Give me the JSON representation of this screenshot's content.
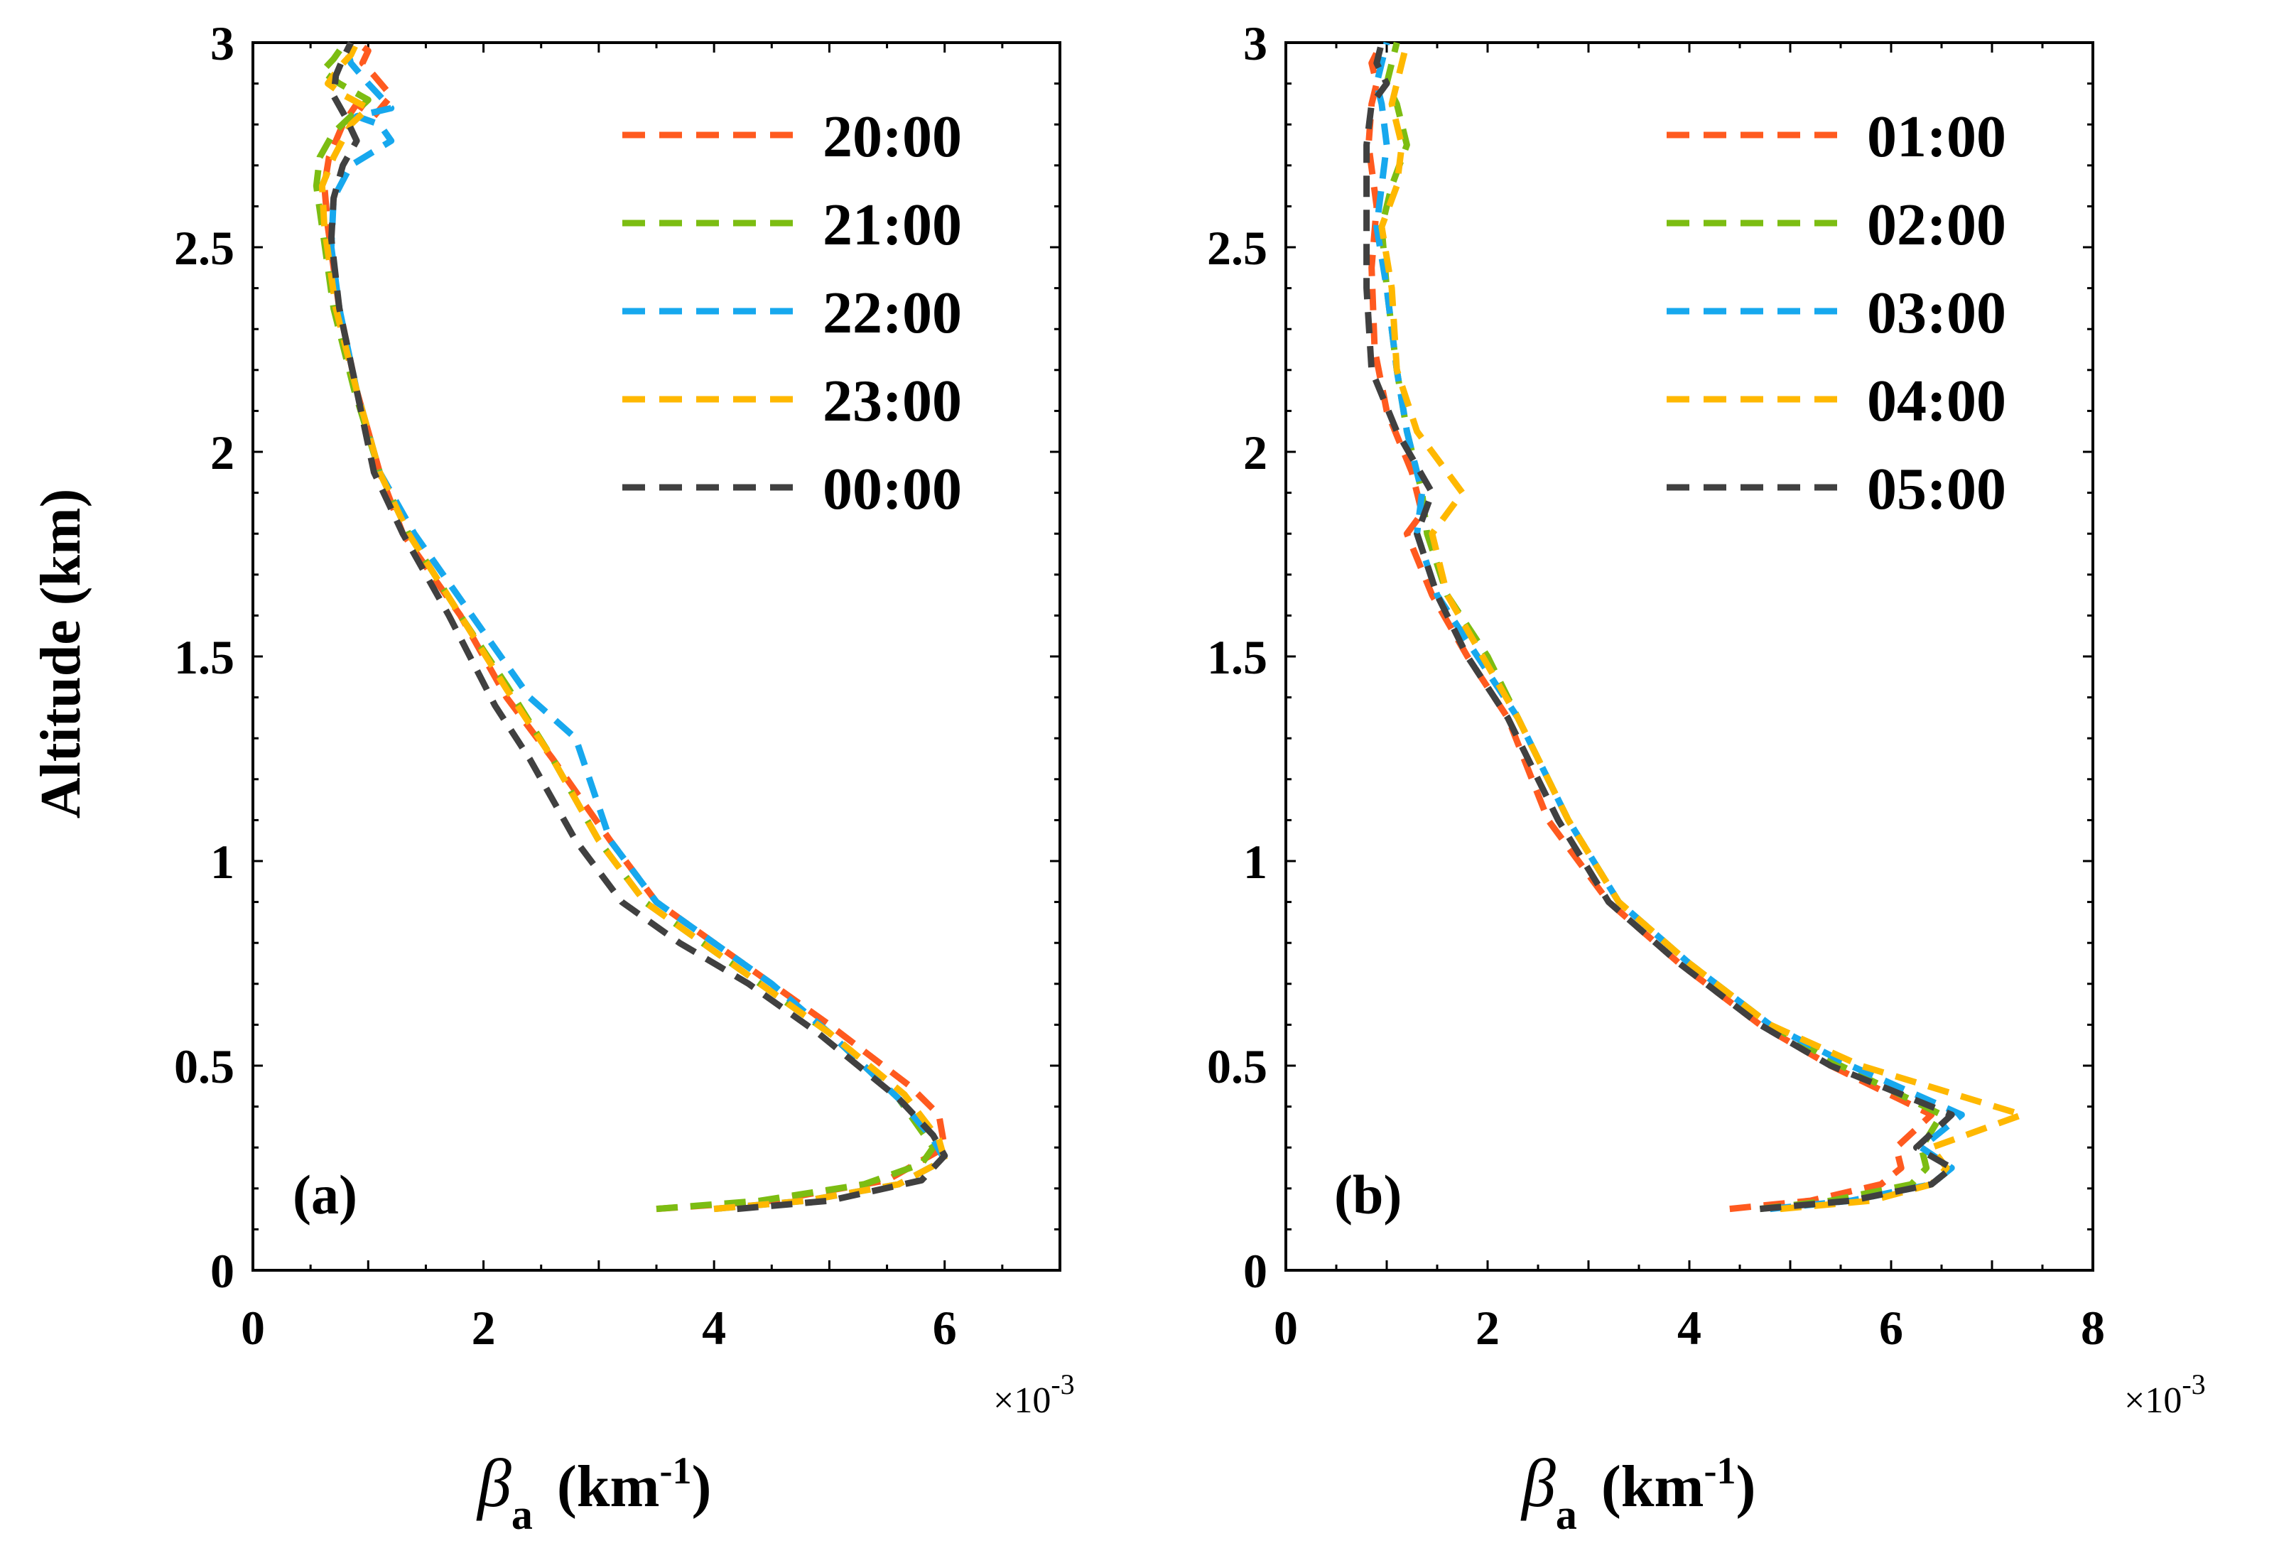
{
  "chart_data": [
    {
      "type": "line",
      "panel_label": "(a)",
      "ylabel": "Altitude  (km)",
      "xlabel_symbol": "β",
      "xlabel_sub": "a",
      "xlabel_unit": "(km",
      "xlabel_sup": "-1",
      "xlabel_close": ")",
      "x_multiplier": "×10",
      "x_multiplier_exp": "-3",
      "xlim": [
        0,
        7
      ],
      "ylim": [
        0,
        3
      ],
      "xticks": [
        "0",
        "2",
        "4",
        "6"
      ],
      "xtick_values": [
        0,
        2,
        4,
        6
      ],
      "yticks": [
        "0",
        "0.5",
        "1",
        "1.5",
        "2",
        "2.5",
        "3"
      ],
      "ytick_values": [
        0,
        0.5,
        1,
        1.5,
        2,
        2.5,
        3
      ],
      "legend_position": "top-right",
      "line_style": "dashed",
      "series": [
        {
          "name": "20:00",
          "color": "#FF5A1F",
          "x": [
            3.5,
            4.5,
            5.5,
            6.0,
            5.95,
            5.7,
            5.0,
            4.5,
            4.0,
            3.5,
            3.1,
            2.6,
            2.2,
            1.8,
            1.3,
            1.1,
            0.9,
            0.75,
            0.65,
            0.62,
            0.66,
            0.78,
            0.9,
            1.05,
            1.2,
            1.05,
            0.95,
            1.0,
            0.9
          ],
          "y": [
            0.15,
            0.17,
            0.22,
            0.3,
            0.38,
            0.45,
            0.6,
            0.7,
            0.8,
            0.9,
            1.05,
            1.25,
            1.4,
            1.6,
            1.8,
            1.95,
            2.15,
            2.35,
            2.55,
            2.65,
            2.72,
            2.8,
            2.85,
            2.82,
            2.87,
            2.92,
            2.95,
            2.98,
            3.0
          ]
        },
        {
          "name": "21:00",
          "color": "#7CBD12",
          "x": [
            3.5,
            4.4,
            5.3,
            5.8,
            5.9,
            5.6,
            5.0,
            4.4,
            3.9,
            3.4,
            3.0,
            2.6,
            2.2,
            1.8,
            1.35,
            1.1,
            0.88,
            0.7,
            0.6,
            0.55,
            0.58,
            0.7,
            0.85,
            1.0,
            0.75,
            0.6,
            0.7,
            0.8
          ],
          "y": [
            0.15,
            0.17,
            0.21,
            0.26,
            0.3,
            0.42,
            0.58,
            0.7,
            0.8,
            0.9,
            1.05,
            1.25,
            1.43,
            1.6,
            1.8,
            1.95,
            2.15,
            2.35,
            2.55,
            2.65,
            2.72,
            2.78,
            2.82,
            2.86,
            2.9,
            2.93,
            2.96,
            3.0
          ]
        },
        {
          "name": "22:00",
          "color": "#17A8EE",
          "x": [
            4.0,
            4.8,
            5.6,
            6.0,
            5.9,
            5.6,
            5.0,
            4.5,
            4.0,
            3.5,
            3.1,
            2.8,
            2.4,
            1.9,
            1.4,
            1.1,
            0.9,
            0.75,
            0.68,
            0.7,
            0.85,
            1.2,
            1.1,
            0.9,
            1.2,
            1.0,
            0.85,
            0.8
          ],
          "y": [
            0.15,
            0.17,
            0.21,
            0.27,
            0.32,
            0.42,
            0.58,
            0.7,
            0.8,
            0.9,
            1.05,
            1.3,
            1.4,
            1.6,
            1.8,
            1.95,
            2.15,
            2.35,
            2.5,
            2.62,
            2.7,
            2.76,
            2.8,
            2.82,
            2.84,
            2.9,
            2.95,
            3.0
          ]
        },
        {
          "name": "23:00",
          "color": "#FFB800",
          "x": [
            4.0,
            4.8,
            5.6,
            6.0,
            5.95,
            5.65,
            5.0,
            4.4,
            3.9,
            3.4,
            3.0,
            2.6,
            2.2,
            1.8,
            1.35,
            1.1,
            0.9,
            0.72,
            0.62,
            0.6,
            0.7,
            0.85,
            1.0,
            0.8,
            0.65,
            0.75,
            0.85,
            0.9
          ],
          "y": [
            0.15,
            0.17,
            0.21,
            0.27,
            0.32,
            0.43,
            0.58,
            0.7,
            0.8,
            0.9,
            1.05,
            1.25,
            1.42,
            1.6,
            1.8,
            1.95,
            2.15,
            2.35,
            2.55,
            2.65,
            2.72,
            2.8,
            2.84,
            2.87,
            2.9,
            2.94,
            2.97,
            3.0
          ]
        },
        {
          "name": "00:00",
          "color": "#404040",
          "x": [
            4.2,
            5.0,
            5.8,
            6.0,
            5.9,
            5.6,
            4.9,
            4.3,
            3.7,
            3.2,
            2.8,
            2.4,
            2.1,
            1.7,
            1.3,
            1.05,
            0.9,
            0.75,
            0.68,
            0.7,
            0.78,
            0.9,
            0.8,
            0.7,
            0.72,
            0.78,
            0.85
          ],
          "y": [
            0.15,
            0.17,
            0.22,
            0.28,
            0.33,
            0.42,
            0.58,
            0.7,
            0.8,
            0.9,
            1.05,
            1.25,
            1.38,
            1.6,
            1.8,
            1.95,
            2.15,
            2.35,
            2.52,
            2.62,
            2.7,
            2.76,
            2.82,
            2.87,
            2.92,
            2.96,
            3.0
          ]
        }
      ]
    },
    {
      "type": "line",
      "panel_label": "(b)",
      "xlabel_symbol": "β",
      "xlabel_sub": "a",
      "xlabel_unit": "(km",
      "xlabel_sup": "-1",
      "xlabel_close": ")",
      "x_multiplier": "×10",
      "x_multiplier_exp": "-3",
      "xlim": [
        0,
        8
      ],
      "ylim": [
        0,
        3
      ],
      "xticks": [
        "0",
        "2",
        "4",
        "6",
        "8"
      ],
      "xtick_values": [
        0,
        2,
        4,
        6,
        8
      ],
      "yticks": [
        "0",
        "0.5",
        "1",
        "1.5",
        "2",
        "2.5",
        "3"
      ],
      "ytick_values": [
        0,
        0.5,
        1,
        1.5,
        2,
        2.5,
        3
      ],
      "legend_position": "top-right",
      "line_style": "dashed",
      "series": [
        {
          "name": "01:00",
          "color": "#FF5A1F",
          "x": [
            4.4,
            5.2,
            5.9,
            6.1,
            6.05,
            6.4,
            5.4,
            4.7,
            3.9,
            3.2,
            2.6,
            2.2,
            1.8,
            1.45,
            1.2,
            1.35,
            1.25,
            1.0,
            0.88,
            0.85,
            0.9,
            0.82,
            0.85,
            0.9,
            0.85,
            0.95
          ],
          "y": [
            0.15,
            0.17,
            0.21,
            0.25,
            0.3,
            0.38,
            0.5,
            0.6,
            0.75,
            0.9,
            1.1,
            1.35,
            1.5,
            1.65,
            1.8,
            1.85,
            1.95,
            2.1,
            2.25,
            2.45,
            2.6,
            2.75,
            2.85,
            2.9,
            2.95,
            3.0
          ]
        },
        {
          "name": "02:00",
          "color": "#7CBD12",
          "x": [
            4.7,
            5.4,
            6.2,
            6.35,
            6.3,
            6.5,
            5.5,
            4.8,
            4.0,
            3.3,
            2.8,
            2.3,
            2.0,
            1.6,
            1.4,
            1.35,
            1.2,
            1.1,
            1.0,
            0.95,
            1.05,
            1.2,
            1.1,
            1.0,
            1.05,
            1.1
          ],
          "y": [
            0.15,
            0.17,
            0.21,
            0.25,
            0.3,
            0.38,
            0.5,
            0.6,
            0.75,
            0.9,
            1.1,
            1.35,
            1.5,
            1.65,
            1.8,
            1.9,
            2.05,
            2.2,
            2.4,
            2.55,
            2.65,
            2.75,
            2.85,
            2.9,
            2.95,
            3.0
          ]
        },
        {
          "name": "03:00",
          "color": "#17A8EE",
          "x": [
            4.8,
            5.6,
            6.4,
            6.6,
            6.3,
            6.7,
            5.6,
            4.8,
            4.0,
            3.3,
            2.8,
            2.3,
            1.9,
            1.5,
            1.3,
            1.35,
            1.2,
            1.1,
            1.0,
            0.9,
            0.95,
            1.0,
            0.95,
            0.9,
            0.95,
            1.0
          ],
          "y": [
            0.15,
            0.17,
            0.21,
            0.25,
            0.3,
            0.38,
            0.5,
            0.6,
            0.75,
            0.9,
            1.1,
            1.35,
            1.5,
            1.65,
            1.8,
            1.9,
            2.05,
            2.2,
            2.4,
            2.55,
            2.65,
            2.75,
            2.85,
            2.9,
            2.95,
            3.0
          ]
        },
        {
          "name": "04:00",
          "color": "#FFB800",
          "x": [
            4.9,
            5.8,
            6.4,
            6.55,
            6.4,
            7.3,
            5.7,
            4.8,
            4.0,
            3.3,
            2.8,
            2.3,
            1.95,
            1.6,
            1.45,
            1.75,
            1.3,
            1.1,
            1.05,
            0.95,
            1.1,
            1.15,
            1.05,
            1.1,
            1.15,
            1.2
          ],
          "y": [
            0.15,
            0.17,
            0.21,
            0.25,
            0.3,
            0.38,
            0.5,
            0.6,
            0.75,
            0.9,
            1.1,
            1.35,
            1.5,
            1.65,
            1.8,
            1.9,
            2.05,
            2.2,
            2.4,
            2.55,
            2.65,
            2.75,
            2.85,
            2.9,
            2.95,
            3.0
          ]
        },
        {
          "name": "05:00",
          "color": "#404040",
          "x": [
            4.7,
            5.6,
            6.4,
            6.6,
            6.25,
            6.6,
            5.4,
            4.7,
            3.9,
            3.2,
            2.7,
            2.2,
            1.8,
            1.5,
            1.3,
            1.45,
            1.1,
            0.85,
            0.8,
            0.8,
            0.8,
            0.8,
            0.85,
            1.0,
            0.9,
            0.95
          ],
          "y": [
            0.15,
            0.17,
            0.21,
            0.25,
            0.3,
            0.38,
            0.5,
            0.6,
            0.75,
            0.9,
            1.1,
            1.35,
            1.5,
            1.65,
            1.8,
            1.9,
            2.05,
            2.2,
            2.4,
            2.55,
            2.65,
            2.75,
            2.85,
            2.9,
            2.95,
            3.0
          ]
        }
      ]
    }
  ]
}
